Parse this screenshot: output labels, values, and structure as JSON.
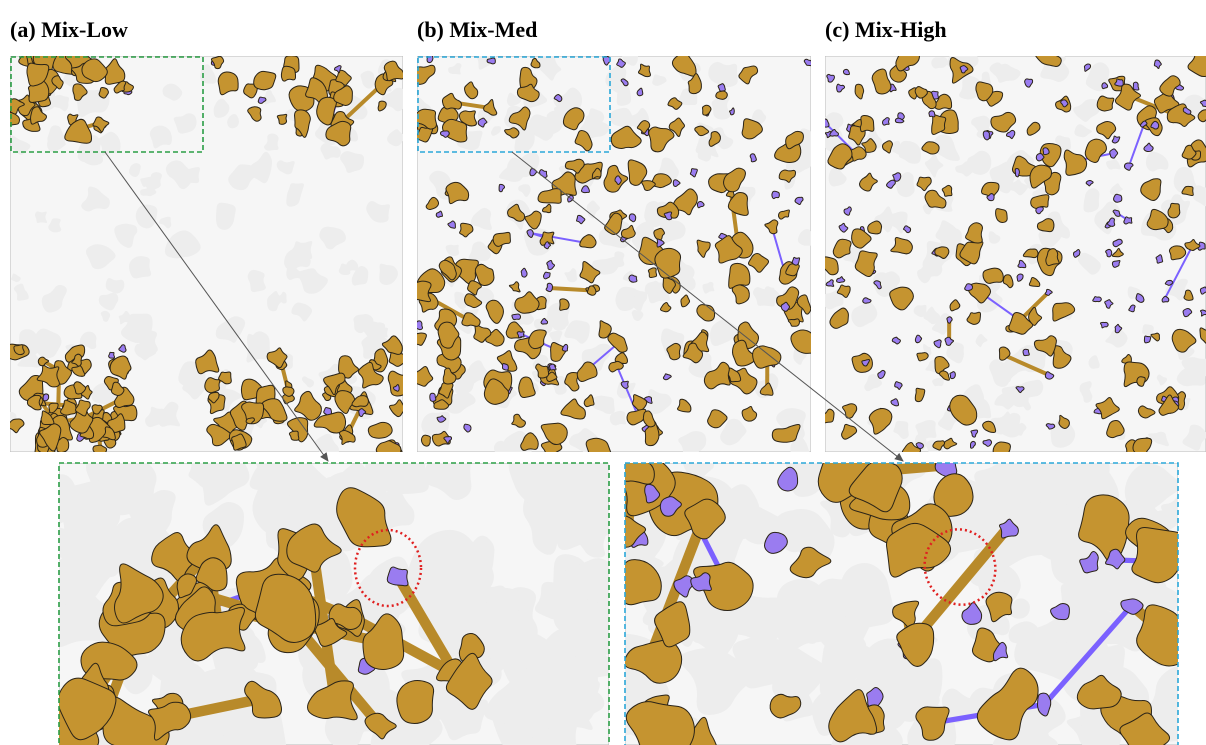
{
  "panels": [
    {
      "title": "(a) Mix-Low"
    },
    {
      "title": "(b) Mix-Med"
    },
    {
      "title": "(c) Mix-High"
    }
  ]
}
